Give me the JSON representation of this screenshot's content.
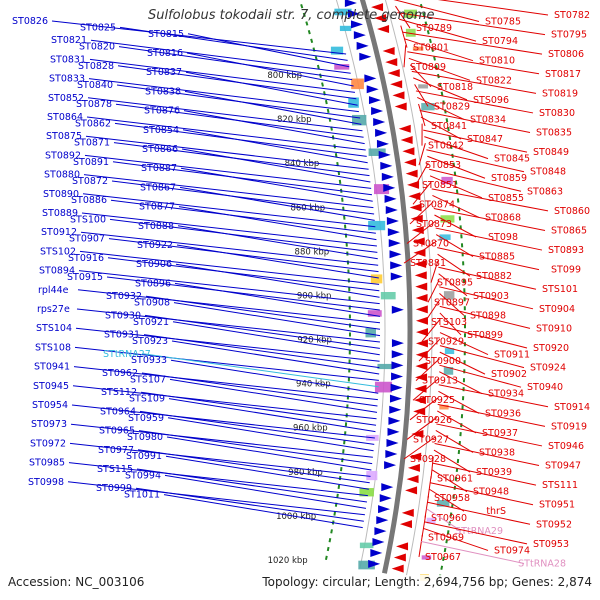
{
  "header": {
    "title": "Sulfolobus tokodaii str. 7, complete genome"
  },
  "footer": {
    "accession": "Accession: NC_003106",
    "stats": "Topology: circular; Length: 2,694,756 bp; Genes: 2,874"
  },
  "colors": {
    "left_strand": "#0000cc",
    "right_strand": "#e00000",
    "rna": "#33bbdd",
    "rna_right": "#e090c0",
    "backbone": "#777777",
    "ring": "#228822"
  },
  "kbp_ticks": [
    "800 kbp",
    "820 kbp",
    "840 kbp",
    "860 kbp",
    "880 kbp",
    "900 kbp",
    "920 kbp",
    "940 kbp",
    "960 kbp",
    "980 kbp",
    "1000 kbp",
    "1020 kbp"
  ],
  "left_labels": [
    "ST0826",
    "ST0825",
    "ST0815",
    "ST0821",
    "ST0820",
    "ST0816",
    "ST0831",
    "ST0828",
    "ST0837",
    "ST0833",
    "ST0840",
    "ST0838",
    "ST0852",
    "ST0878",
    "ST0876",
    "ST0864",
    "ST0862",
    "ST0854",
    "ST0875",
    "ST0871",
    "ST0866",
    "ST0892",
    "ST0891",
    "ST0887",
    "ST0880",
    "ST0872",
    "ST0867",
    "ST0890",
    "ST0886",
    "ST0877",
    "ST0889",
    "STS100",
    "ST0888",
    "ST0912",
    "ST0907",
    "ST0922",
    "STS102",
    "ST0916",
    "ST0906",
    "ST0894",
    "ST0915",
    "ST0896",
    "rpl44e",
    "ST0932",
    "ST0908",
    "rps27e",
    "ST0930",
    "ST0921",
    "STS104",
    "ST0931",
    "ST0923",
    "STS108",
    "STtRNA27",
    "ST0933",
    "ST0941",
    "ST0962",
    "STS107",
    "ST0945",
    "STS112",
    "STS109",
    "ST0954",
    "ST0964",
    "ST0959",
    "ST0973",
    "ST0965",
    "ST0980",
    "ST0972",
    "ST0977",
    "ST0991",
    "ST0985",
    "STS115",
    "ST0994",
    "ST0998",
    "ST0999",
    "ST1011"
  ],
  "right_labels": [
    "ST0782",
    "ST0785",
    "ST0789",
    "ST0795",
    "ST0794",
    "ST0801",
    "ST0806",
    "ST0810",
    "ST0809",
    "ST0817",
    "ST0822",
    "ST0818",
    "ST0819",
    "STS096",
    "ST0829",
    "ST0830",
    "ST0834",
    "ST0841",
    "ST0835",
    "ST0847",
    "ST0842",
    "ST0849",
    "ST0845",
    "ST0853",
    "ST0848",
    "ST0859",
    "ST0851",
    "ST0863",
    "ST0855",
    "ST0874",
    "ST0860",
    "ST0868",
    "ST0873",
    "ST0865",
    "ST098",
    "ST0870",
    "ST0893",
    "ST0885",
    "ST0881",
    "ST099",
    "ST0882",
    "ST0895",
    "STS101",
    "ST0903",
    "ST0897",
    "ST0904",
    "ST0898",
    "STS103",
    "ST0910",
    "ST0899",
    "ST0929",
    "ST0920",
    "ST0911",
    "ST0900",
    "ST0924",
    "ST0902",
    "ST0913",
    "ST0940",
    "ST0934",
    "ST0925",
    "ST0914",
    "ST0936",
    "ST0926",
    "ST0919",
    "ST0937",
    "ST0927",
    "ST0946",
    "ST0938",
    "ST0928",
    "ST0947",
    "ST0939",
    "ST0961",
    "STS111",
    "ST0948",
    "ST0958",
    "ST0951",
    "thrS",
    "ST0960",
    "ST0952",
    "STtRNA29",
    "ST0969",
    "ST0953",
    "ST0974",
    "ST0967",
    "STtRNA28"
  ]
}
